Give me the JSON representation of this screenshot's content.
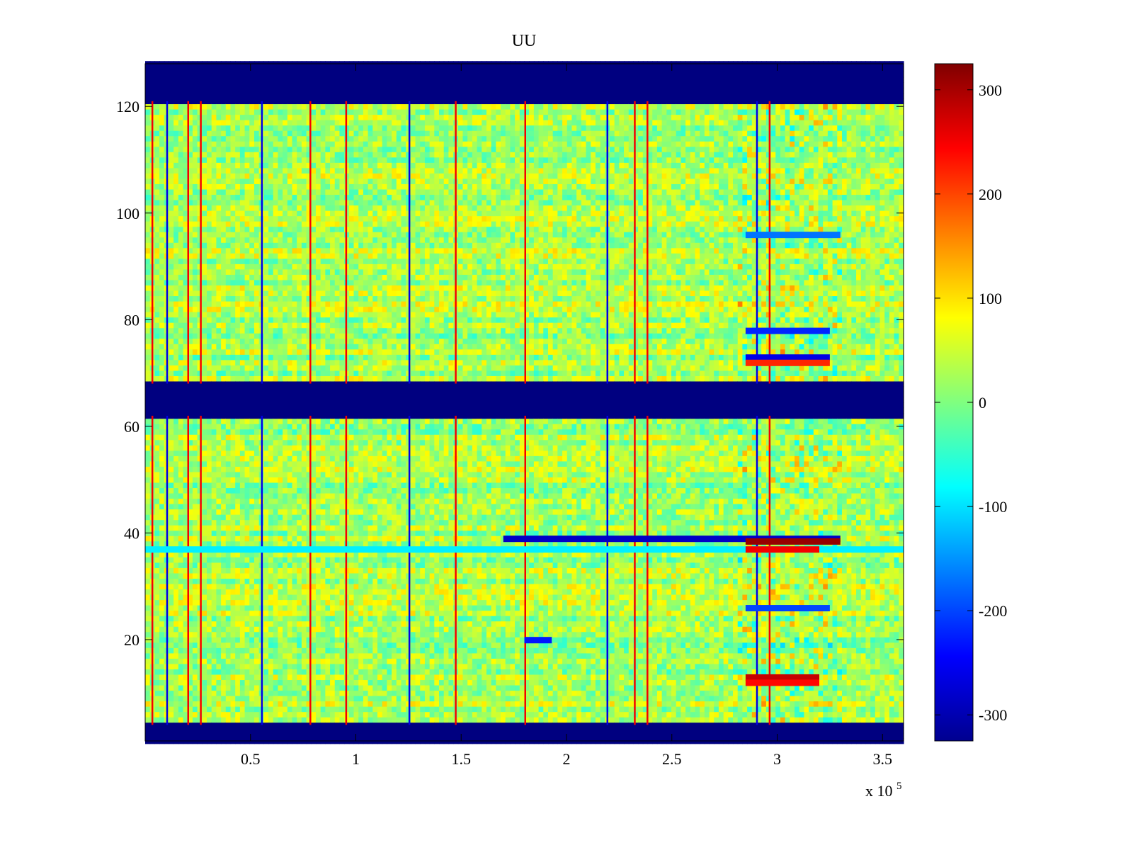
{
  "chart_data": {
    "type": "heatmap",
    "title": "UU",
    "xlabel": "",
    "ylabel": "",
    "x_multiplier_label": "x 10",
    "x_multiplier_exponent": "5",
    "xlim": [
      0,
      3.6
    ],
    "ylim": [
      1,
      128
    ],
    "x_ticks": [
      {
        "value": 0.5,
        "label": "0.5"
      },
      {
        "value": 1.0,
        "label": "1"
      },
      {
        "value": 1.5,
        "label": "1.5"
      },
      {
        "value": 2.0,
        "label": "2"
      },
      {
        "value": 2.5,
        "label": "2.5"
      },
      {
        "value": 3.0,
        "label": "3"
      },
      {
        "value": 3.5,
        "label": "3.5"
      }
    ],
    "y_ticks": [
      {
        "value": 20,
        "label": "20"
      },
      {
        "value": 40,
        "label": "40"
      },
      {
        "value": 60,
        "label": "60"
      },
      {
        "value": 80,
        "label": "80"
      },
      {
        "value": 100,
        "label": "100"
      },
      {
        "value": 120,
        "label": "120"
      }
    ],
    "colorbar": {
      "colormap": "jet",
      "range": [
        -325,
        325
      ],
      "ticks": [
        {
          "value": 300,
          "label": "300"
        },
        {
          "value": 200,
          "label": "200"
        },
        {
          "value": 100,
          "label": "100"
        },
        {
          "value": 0,
          "label": "0"
        },
        {
          "value": -100,
          "label": "-100"
        },
        {
          "value": -200,
          "label": "-200"
        },
        {
          "value": -300,
          "label": "-300"
        }
      ]
    },
    "masked_row_bands": [
      {
        "y_from": 1,
        "y_to": 4,
        "value": -325
      },
      {
        "y_from": 62,
        "y_to": 68,
        "value": -325
      },
      {
        "y_from": 121,
        "y_to": 128,
        "value": -325
      }
    ],
    "strong_columns_x": [
      0.03,
      0.1,
      0.2,
      0.26,
      0.55,
      0.78,
      0.95,
      1.25,
      1.47,
      1.8,
      2.19,
      2.32,
      2.38,
      2.9,
      2.96
    ],
    "strong_row_features": [
      {
        "y": 39,
        "x_from": 1.7,
        "x_to": 3.3,
        "value": -280
      },
      {
        "y": 38.5,
        "x_from": 2.85,
        "x_to": 3.3,
        "value": 310
      },
      {
        "y": 37,
        "x_from": 0.0,
        "x_to": 3.6,
        "value": -90
      },
      {
        "y": 37,
        "x_from": 2.85,
        "x_to": 3.2,
        "value": 250
      },
      {
        "y": 78,
        "x_from": 2.85,
        "x_to": 3.25,
        "value": -220
      },
      {
        "y": 73,
        "x_from": 2.85,
        "x_to": 3.25,
        "value": -260
      },
      {
        "y": 72,
        "x_from": 2.85,
        "x_to": 3.25,
        "value": 220
      },
      {
        "y": 26,
        "x_from": 2.85,
        "x_to": 3.25,
        "value": -200
      },
      {
        "y": 13,
        "x_from": 2.85,
        "x_to": 3.2,
        "value": 280
      },
      {
        "y": 12,
        "x_from": 2.85,
        "x_to": 3.2,
        "value": 240
      },
      {
        "y": 20,
        "x_from": 1.8,
        "x_to": 1.93,
        "value": -230
      },
      {
        "y": 96,
        "x_from": 2.85,
        "x_to": 3.3,
        "value": -170
      }
    ]
  }
}
